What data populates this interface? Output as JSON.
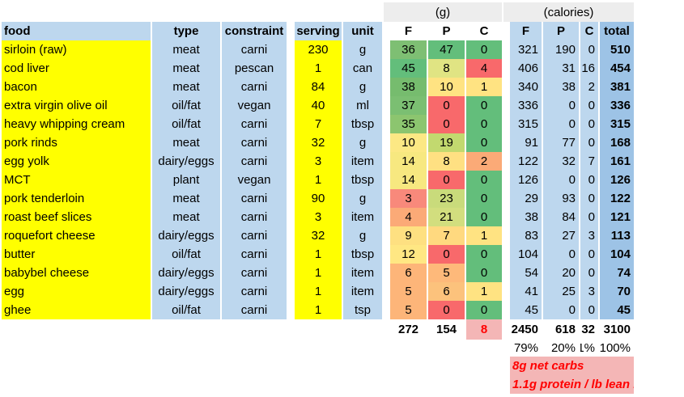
{
  "groups": {
    "grams": "(g)",
    "calories": "(calories)"
  },
  "headers": {
    "food": "food",
    "type": "type",
    "constraint": "constraint",
    "serving": "serving",
    "unit": "unit",
    "gF": "F",
    "gP": "P",
    "gC": "C",
    "cF": "F",
    "cP": "P",
    "cC": "C",
    "total": "total"
  },
  "rows": [
    {
      "food": "sirloin (raw)",
      "type": "meat",
      "constraint": "carni",
      "serving": "230",
      "unit": "g",
      "gF": "36",
      "gP": "47",
      "gC": "0",
      "cF": "321",
      "cP": "190",
      "cC": "0",
      "total": "510"
    },
    {
      "food": "cod liver",
      "type": "meat",
      "constraint": "pescan",
      "serving": "1",
      "unit": "can",
      "gF": "45",
      "gP": "8",
      "gC": "4",
      "cF": "406",
      "cP": "31",
      "cC": "16",
      "total": "454"
    },
    {
      "food": "bacon",
      "type": "meat",
      "constraint": "carni",
      "serving": "84",
      "unit": "g",
      "gF": "38",
      "gP": "10",
      "gC": "1",
      "cF": "340",
      "cP": "38",
      "cC": "2",
      "total": "381"
    },
    {
      "food": "extra virgin olive oil",
      "type": "oil/fat",
      "constraint": "vegan",
      "serving": "40",
      "unit": "ml",
      "gF": "37",
      "gP": "0",
      "gC": "0",
      "cF": "336",
      "cP": "0",
      "cC": "0",
      "total": "336"
    },
    {
      "food": "heavy whipping cream",
      "type": "oil/fat",
      "constraint": "carni",
      "serving": "7",
      "unit": "tbsp",
      "gF": "35",
      "gP": "0",
      "gC": "0",
      "cF": "315",
      "cP": "0",
      "cC": "0",
      "total": "315"
    },
    {
      "food": "pork rinds",
      "type": "meat",
      "constraint": "carni",
      "serving": "32",
      "unit": "g",
      "gF": "10",
      "gP": "19",
      "gC": "0",
      "cF": "91",
      "cP": "77",
      "cC": "0",
      "total": "168"
    },
    {
      "food": "egg yolk",
      "type": "dairy/eggs",
      "constraint": "carni",
      "serving": "3",
      "unit": "item",
      "gF": "14",
      "gP": "8",
      "gC": "2",
      "cF": "122",
      "cP": "32",
      "cC": "7",
      "total": "161"
    },
    {
      "food": "MCT",
      "type": "plant",
      "constraint": "vegan",
      "serving": "1",
      "unit": "tbsp",
      "gF": "14",
      "gP": "0",
      "gC": "0",
      "cF": "126",
      "cP": "0",
      "cC": "0",
      "total": "126"
    },
    {
      "food": "pork tenderloin",
      "type": "meat",
      "constraint": "carni",
      "serving": "90",
      "unit": "g",
      "gF": "3",
      "gP": "23",
      "gC": "0",
      "cF": "29",
      "cP": "93",
      "cC": "0",
      "total": "122"
    },
    {
      "food": "roast beef slices",
      "type": "meat",
      "constraint": "carni",
      "serving": "3",
      "unit": "item",
      "gF": "4",
      "gP": "21",
      "gC": "0",
      "cF": "38",
      "cP": "84",
      "cC": "0",
      "total": "121"
    },
    {
      "food": "roquefort cheese",
      "type": "dairy/eggs",
      "constraint": "carni",
      "serving": "32",
      "unit": "g",
      "gF": "9",
      "gP": "7",
      "gC": "1",
      "cF": "83",
      "cP": "27",
      "cC": "3",
      "total": "113"
    },
    {
      "food": "butter",
      "type": "oil/fat",
      "constraint": "carni",
      "serving": "1",
      "unit": "tbsp",
      "gF": "12",
      "gP": "0",
      "gC": "0",
      "cF": "104",
      "cP": "0",
      "cC": "0",
      "total": "104"
    },
    {
      "food": "babybel cheese",
      "type": "dairy/eggs",
      "constraint": "carni",
      "serving": "1",
      "unit": "item",
      "gF": "6",
      "gP": "5",
      "gC": "0",
      "cF": "54",
      "cP": "20",
      "cC": "0",
      "total": "74"
    },
    {
      "food": "egg",
      "type": "dairy/eggs",
      "constraint": "carni",
      "serving": "1",
      "unit": "item",
      "gF": "5",
      "gP": "6",
      "gC": "1",
      "cF": "41",
      "cP": "25",
      "cC": "3",
      "total": "70"
    },
    {
      "food": "ghee",
      "type": "oil/fat",
      "constraint": "carni",
      "serving": "1",
      "unit": "tsp",
      "gF": "5",
      "gP": "0",
      "gC": "0",
      "cF": "45",
      "cP": "0",
      "cC": "0",
      "total": "45"
    }
  ],
  "colors": {
    "gF": [
      "#7ebf73",
      "#63be7b",
      "#76bc6e",
      "#7bbf72",
      "#8cc56f",
      "#fce884",
      "#f7e880",
      "#f7e880",
      "#f8897b",
      "#fbaa77",
      "#fee081",
      "#ffe783",
      "#fdb579",
      "#fdb579",
      "#fdb579"
    ],
    "gP": [
      "#63be7b",
      "#e0e483",
      "#ffe382",
      "#f8696b",
      "#f8696b",
      "#c2d96f",
      "#ffe082",
      "#f8696b",
      "#c9db7b",
      "#d2de7e",
      "#ffd97f",
      "#f8696b",
      "#feb97a",
      "#fcc27c",
      "#f8696b"
    ],
    "gC": [
      "#63be7b",
      "#f8696b",
      "#ffe382",
      "#63be7b",
      "#63be7b",
      "#63be7b",
      "#fbaa77",
      "#63be7b",
      "#63be7b",
      "#63be7b",
      "#ffe382",
      "#63be7b",
      "#63be7b",
      "#ffe382",
      "#63be7b"
    ]
  },
  "totals": {
    "gF": "272",
    "gP": "154",
    "gC": "8",
    "cF": "2450",
    "cP": "618",
    "cC": "32",
    "total": "3100"
  },
  "percents": {
    "cF": "79%",
    "cP": "20%",
    "cC": "1%",
    "total": "100%"
  },
  "notes": [
    "8g net carbs",
    "1.1g protein / lb lean mass"
  ]
}
